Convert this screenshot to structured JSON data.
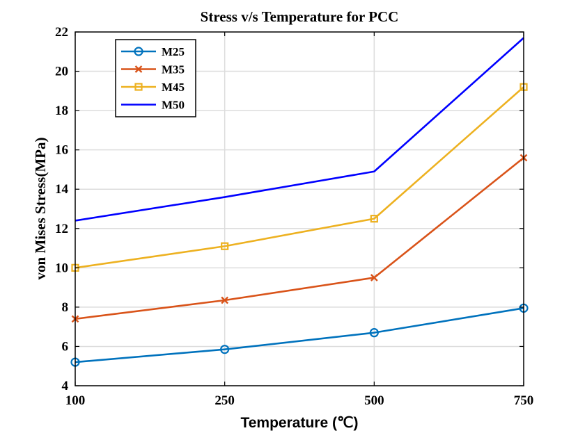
{
  "chart_data": {
    "type": "line",
    "title": "Stress v/s Temperature for PCC",
    "xlabel": "Temperature (℃)",
    "ylabel": "von Mises Stress(MPa)",
    "categories": [
      "100",
      "250",
      "500",
      "750"
    ],
    "ylim": [
      4,
      22
    ],
    "yticks": [
      "4",
      "6",
      "8",
      "10",
      "12",
      "14",
      "16",
      "18",
      "20",
      "22"
    ],
    "grid": true,
    "legend_position": "top-left",
    "series": [
      {
        "name": "M25",
        "color": "#0072BD",
        "marker": "circle",
        "values": [
          5.2,
          5.85,
          6.7,
          7.95
        ]
      },
      {
        "name": "M35",
        "color": "#D95319",
        "marker": "x",
        "values": [
          7.4,
          8.35,
          9.5,
          15.6
        ]
      },
      {
        "name": "M45",
        "color": "#EDB120",
        "marker": "square",
        "values": [
          10.0,
          11.1,
          12.5,
          19.2
        ]
      },
      {
        "name": "M50",
        "color": "#0000FF",
        "marker": "none",
        "values": [
          12.4,
          13.6,
          14.9,
          21.7
        ]
      }
    ]
  }
}
